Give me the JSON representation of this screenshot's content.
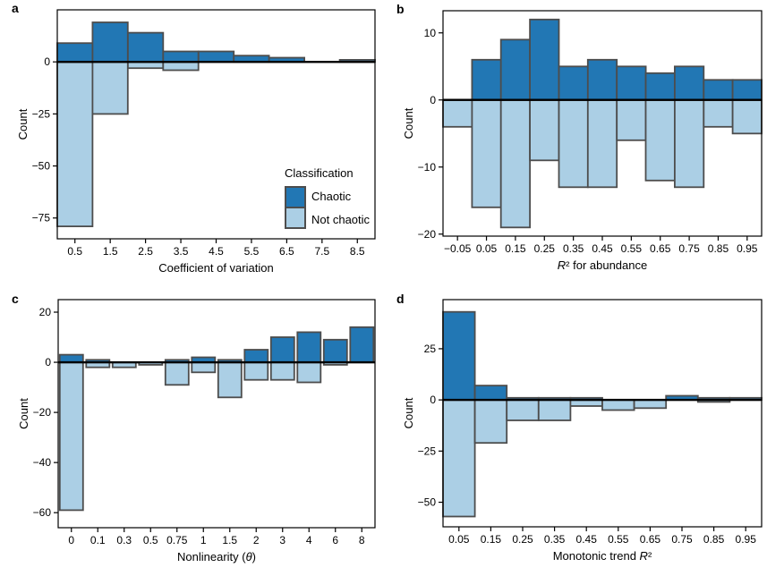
{
  "figure": {
    "background": "#ffffff"
  },
  "colors": {
    "chaotic": "#2277b4",
    "not_chaotic": "#abcfe5",
    "bar_outline": "#4d4d4d",
    "axis_line": "#000000",
    "zero_line": "#000000",
    "text": "#000000"
  },
  "legend": {
    "title": "Classification",
    "position": "inside panel a, lower right",
    "items": [
      {
        "label": "Chaotic",
        "color_key": "chaotic"
      },
      {
        "label": "Not chaotic",
        "color_key": "not_chaotic"
      }
    ]
  },
  "chart_data": [
    {
      "id": "a",
      "type": "bar",
      "subtype": "diverging-histogram",
      "panel_label": "a",
      "xlabel": "Coefficient of variation",
      "ylabel": "Count",
      "categories": [
        "0.5",
        "1.5",
        "2.5",
        "3.5",
        "4.5",
        "5.5",
        "6.5",
        "7.5",
        "8.5"
      ],
      "series": [
        {
          "name": "Chaotic",
          "values": [
            9,
            19,
            14,
            5,
            5,
            3,
            2,
            0,
            1
          ]
        },
        {
          "name": "Not chaotic",
          "values": [
            -79,
            -25,
            -3,
            -4,
            0,
            0,
            0,
            0,
            0
          ]
        }
      ],
      "yticks": [
        {
          "value": 0,
          "label": "0"
        },
        {
          "value": -25,
          "label": "−25"
        },
        {
          "value": -50,
          "label": "−50"
        },
        {
          "value": -75,
          "label": "−75"
        }
      ],
      "ylim": [
        -85,
        25
      ],
      "bar_layout": "flush",
      "grid": "off"
    },
    {
      "id": "b",
      "type": "bar",
      "subtype": "diverging-histogram",
      "panel_label": "b",
      "xlabel": "R² for abundance",
      "ylabel": "Count",
      "categories": [
        "−0.05",
        "0.05",
        "0.15",
        "0.25",
        "0.35",
        "0.45",
        "0.55",
        "0.65",
        "0.75",
        "0.85",
        "0.95"
      ],
      "series": [
        {
          "name": "Chaotic",
          "values": [
            0,
            6,
            9,
            12,
            5,
            6,
            5,
            4,
            5,
            3,
            3
          ]
        },
        {
          "name": "Not chaotic",
          "values": [
            -4,
            -16,
            -19,
            -9,
            -13,
            -13,
            -6,
            -12,
            -13,
            -4,
            -5
          ]
        }
      ],
      "yticks": [
        {
          "value": 10,
          "label": "10"
        },
        {
          "value": 0,
          "label": "0"
        },
        {
          "value": -10,
          "label": "−10"
        },
        {
          "value": -20,
          "label": "−20"
        }
      ],
      "ylim": [
        -20.3,
        13.3
      ],
      "bar_layout": "flush",
      "grid": "off"
    },
    {
      "id": "c",
      "type": "bar",
      "subtype": "diverging-histogram",
      "panel_label": "c",
      "xlabel": "Nonlinearity (θ)",
      "ylabel": "Count",
      "categories": [
        "0",
        "0.1",
        "0.3",
        "0.5",
        "0.75",
        "1",
        "1.5",
        "2",
        "3",
        "4",
        "6",
        "8"
      ],
      "series": [
        {
          "name": "Chaotic",
          "values": [
            3,
            1,
            0,
            0,
            1,
            2,
            1,
            5,
            10,
            12,
            9,
            14
          ]
        },
        {
          "name": "Not chaotic",
          "values": [
            -59,
            -2,
            -2,
            -1,
            -9,
            -4,
            -14,
            -7,
            -7,
            -8,
            -1,
            0
          ]
        }
      ],
      "yticks": [
        {
          "value": 20,
          "label": "20"
        },
        {
          "value": 0,
          "label": "0"
        },
        {
          "value": -20,
          "label": "−20"
        },
        {
          "value": -40,
          "label": "−40"
        },
        {
          "value": -60,
          "label": "−60"
        }
      ],
      "ylim": [
        -66,
        25
      ],
      "bar_layout": "gapped",
      "grid": "off"
    },
    {
      "id": "d",
      "type": "bar",
      "subtype": "diverging-histogram",
      "panel_label": "d",
      "xlabel": "Monotonic trend R²",
      "ylabel": "Count",
      "categories": [
        "0.05",
        "0.15",
        "0.25",
        "0.35",
        "0.45",
        "0.55",
        "0.65",
        "0.75",
        "0.85",
        "0.95"
      ],
      "series": [
        {
          "name": "Chaotic",
          "values": [
            43,
            7,
            1,
            1,
            1,
            0,
            0,
            2,
            1,
            1
          ]
        },
        {
          "name": "Not chaotic",
          "values": [
            -57,
            -21,
            -10,
            -10,
            -3,
            -5,
            -4,
            0,
            -1,
            0
          ]
        }
      ],
      "yticks": [
        {
          "value": 25,
          "label": "25"
        },
        {
          "value": 0,
          "label": "0"
        },
        {
          "value": -25,
          "label": "−25"
        },
        {
          "value": -50,
          "label": "−50"
        }
      ],
      "ylim": [
        -62,
        49
      ],
      "bar_layout": "flush",
      "grid": "off"
    }
  ]
}
